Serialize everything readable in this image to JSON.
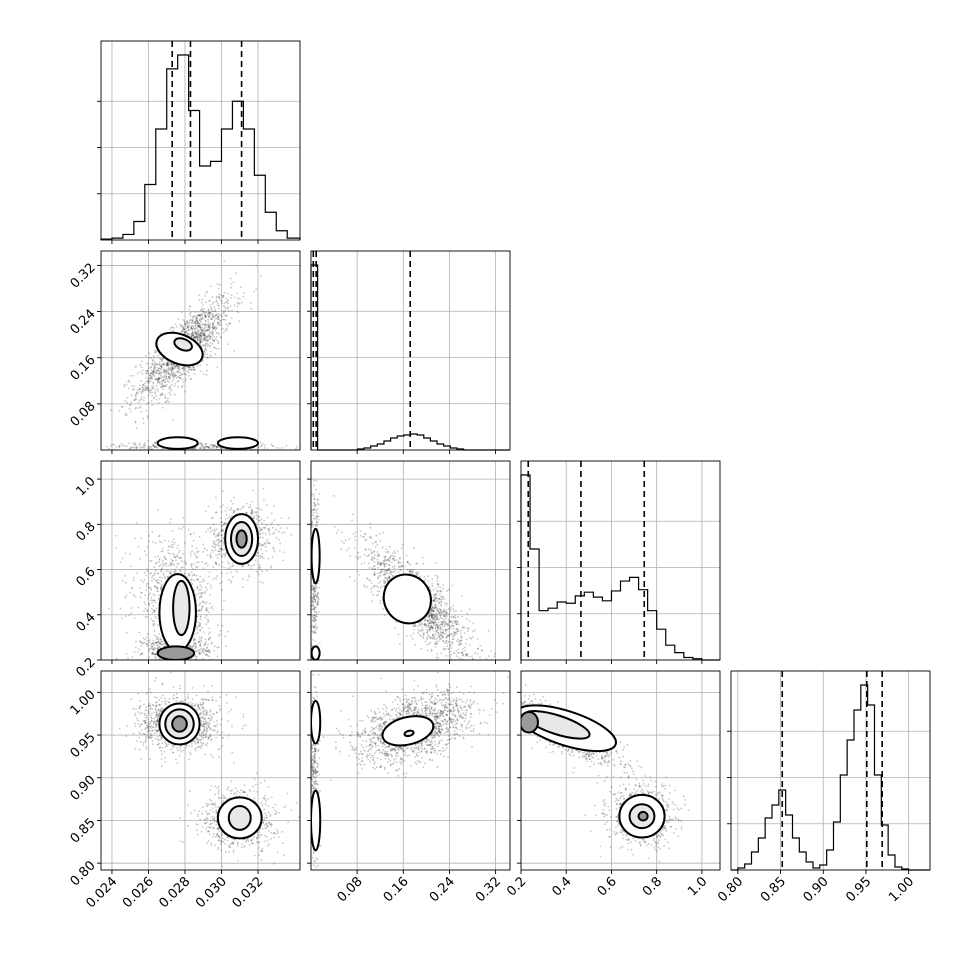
{
  "chart_data": {
    "type": "corner",
    "grid": true,
    "parameters": [
      {
        "range": [
          0.0234,
          0.0343
        ],
        "ticks": [
          0.024,
          0.026,
          0.028,
          0.03,
          0.032
        ],
        "tick_labels": [
          "0.024",
          "0.026",
          "0.028",
          "0.030",
          "0.032"
        ],
        "quantiles": [
          0.0273,
          0.0283,
          0.0311
        ],
        "histogram": {
          "bin_edges": [
            0.0234,
            0.024,
            0.0246,
            0.0252,
            0.0258,
            0.0264,
            0.027,
            0.0276,
            0.0282,
            0.0288,
            0.0294,
            0.03,
            0.0306,
            0.0312,
            0.0318,
            0.0324,
            0.033,
            0.0336,
            0.0343
          ],
          "counts": [
            1,
            2,
            6,
            20,
            60,
            120,
            185,
            200,
            140,
            80,
            85,
            120,
            150,
            120,
            70,
            30,
            10,
            2
          ]
        }
      },
      {
        "range": [
          0.0,
          0.345
        ],
        "ticks": [
          0.08,
          0.16,
          0.24,
          0.32
        ],
        "tick_labels": [
          "0.08",
          "0.16",
          "0.24",
          "0.32"
        ],
        "quantiles": [
          0.004,
          0.009,
          0.172
        ],
        "histogram": {
          "bin_edges": [
            0.0,
            0.0115,
            0.023,
            0.0345,
            0.046,
            0.0575,
            0.069,
            0.0805,
            0.092,
            0.1035,
            0.115,
            0.1265,
            0.138,
            0.1495,
            0.161,
            0.1725,
            0.184,
            0.1955,
            0.207,
            0.2185,
            0.23,
            0.2415,
            0.253,
            0.2645,
            0.276,
            0.2875,
            0.299,
            0.3105,
            0.322,
            0.3335,
            0.345
          ],
          "counts": [
            185,
            0,
            0,
            0,
            0,
            0,
            0,
            1,
            2,
            4,
            6,
            9,
            12,
            14,
            15,
            16,
            15,
            12,
            9,
            6,
            4,
            2,
            1,
            0,
            0,
            0,
            0,
            0,
            0,
            0
          ]
        }
      },
      {
        "range": [
          0.2,
          1.08
        ],
        "ticks": [
          0.2,
          0.4,
          0.6,
          0.8,
          1.0
        ],
        "tick_labels": [
          "0.2",
          "0.4",
          "0.6",
          "0.8",
          "1.0"
        ],
        "quantiles": [
          0.232,
          0.465,
          0.745
        ],
        "histogram": {
          "bin_edges": [
            0.2,
            0.24,
            0.28,
            0.32,
            0.36,
            0.4,
            0.44,
            0.48,
            0.52,
            0.56,
            0.6,
            0.64,
            0.68,
            0.72,
            0.76,
            0.8,
            0.84,
            0.88,
            0.92,
            0.96,
            1.0,
            1.04,
            1.08
          ],
          "counts": [
            150,
            90,
            40,
            42,
            47,
            46,
            52,
            55,
            51,
            48,
            56,
            64,
            67,
            57,
            40,
            25,
            12,
            6,
            2,
            1,
            0,
            0
          ]
        }
      },
      {
        "range": [
          0.792,
          1.025
        ],
        "ticks": [
          0.8,
          0.85,
          0.9,
          0.95,
          1.0
        ],
        "tick_labels": [
          "0.80",
          "0.85",
          "0.90",
          "0.95",
          "1.00"
        ],
        "quantiles": [
          0.852,
          0.951,
          0.969
        ],
        "histogram": {
          "bin_edges": [
            0.792,
            0.8,
            0.808,
            0.816,
            0.824,
            0.832,
            0.84,
            0.848,
            0.856,
            0.864,
            0.872,
            0.88,
            0.888,
            0.896,
            0.904,
            0.912,
            0.92,
            0.928,
            0.936,
            0.944,
            0.952,
            0.96,
            0.968,
            0.976,
            0.984,
            0.992,
            1.0,
            1.008,
            1.025
          ],
          "counts": [
            0,
            2,
            6,
            18,
            32,
            52,
            65,
            80,
            55,
            32,
            18,
            8,
            2,
            5,
            20,
            48,
            95,
            130,
            160,
            185,
            165,
            95,
            45,
            15,
            3,
            1,
            0,
            0
          ]
        }
      }
    ],
    "pairs": [
      {
        "row": 1,
        "col": 0,
        "clouds": [
          {
            "mean": [
              0.028,
              0.175
            ],
            "sd": [
              0.0013,
              0.045
            ],
            "rho": 0.8,
            "n": 1500
          },
          {
            "mean": [
              0.0285,
              0.006
            ],
            "sd": [
              0.0022,
              0.004
            ],
            "rho": 0.0,
            "n": 350
          }
        ],
        "contours": [
          {
            "center": [
              0.0277,
              0.175
            ],
            "rx": 0.0008,
            "ry": 0.042,
            "rot": -68,
            "level": 0
          },
          {
            "center": [
              0.0279,
              0.183
            ],
            "rx": 0.0003,
            "ry": 0.016,
            "rot": -68,
            "level": 1
          },
          {
            "center": [
              0.0276,
              0.012
            ],
            "rx": 0.0011,
            "ry": 0.01,
            "rot": 0,
            "level": 0
          },
          {
            "center": [
              0.0309,
              0.012
            ],
            "rx": 0.0011,
            "ry": 0.01,
            "rot": 0,
            "level": 0
          }
        ]
      },
      {
        "row": 2,
        "col": 0,
        "clouds": [
          {
            "mean": [
              0.0311,
              0.74
            ],
            "sd": [
              0.0009,
              0.075
            ],
            "rho": 0.0,
            "n": 700
          },
          {
            "mean": [
              0.0275,
              0.46
            ],
            "sd": [
              0.0011,
              0.13
            ],
            "rho": -0.2,
            "n": 900
          },
          {
            "mean": [
              0.0275,
              0.25
            ],
            "sd": [
              0.0009,
              0.03
            ],
            "rho": 0.0,
            "n": 450
          }
        ],
        "contours": [
          {
            "center": [
              0.0311,
              0.735
            ],
            "rx": 0.0009,
            "ry": 0.11,
            "rot": 0,
            "level": 0
          },
          {
            "center": [
              0.0311,
              0.735
            ],
            "rx": 0.00058,
            "ry": 0.075,
            "rot": 0,
            "level": 1
          },
          {
            "center": [
              0.0311,
              0.735
            ],
            "rx": 0.00028,
            "ry": 0.038,
            "rot": 0,
            "level": 2
          },
          {
            "center": [
              0.0276,
              0.41
            ],
            "rx": 0.001,
            "ry": 0.17,
            "rot": 0,
            "level": 0
          },
          {
            "center": [
              0.0278,
              0.43
            ],
            "rx": 0.00045,
            "ry": 0.12,
            "rot": 0,
            "level": 1
          },
          {
            "center": [
              0.0275,
              0.23
            ],
            "rx": 0.001,
            "ry": 0.03,
            "rot": 0,
            "level": 2
          }
        ]
      },
      {
        "row": 2,
        "col": 1,
        "clouds": [
          {
            "mean": [
              0.185,
              0.46
            ],
            "sd": [
              0.045,
              0.12
            ],
            "rho": -0.8,
            "n": 1500
          },
          {
            "mean": [
              0.006,
              0.55
            ],
            "sd": [
              0.004,
              0.22
            ],
            "rho": 0.0,
            "n": 350
          }
        ],
        "contours": [
          {
            "center": [
              0.167,
              0.47
            ],
            "rx": 0.04,
            "ry": 0.11,
            "rot": -32,
            "level": 0
          },
          {
            "center": [
              0.008,
              0.66
            ],
            "rx": 0.007,
            "ry": 0.12,
            "rot": 0,
            "level": 0
          },
          {
            "center": [
              0.008,
              0.23
            ],
            "rx": 0.007,
            "ry": 0.03,
            "rot": 0,
            "level": 0
          }
        ]
      },
      {
        "row": 3,
        "col": 0,
        "clouds": [
          {
            "mean": [
              0.0277,
              0.963
            ],
            "sd": [
              0.0011,
              0.016
            ],
            "rho": 0.0,
            "n": 1100
          },
          {
            "mean": [
              0.031,
              0.852
            ],
            "sd": [
              0.001,
              0.017
            ],
            "rho": 0.0,
            "n": 800
          }
        ],
        "contours": [
          {
            "center": [
              0.0277,
              0.963
            ],
            "rx": 0.0011,
            "ry": 0.024,
            "rot": 0,
            "level": 0
          },
          {
            "center": [
              0.0277,
              0.963
            ],
            "rx": 0.00078,
            "ry": 0.017,
            "rot": 0,
            "level": 1
          },
          {
            "center": [
              0.0277,
              0.963
            ],
            "rx": 0.0004,
            "ry": 0.009,
            "rot": 0,
            "level": 2
          },
          {
            "center": [
              0.031,
              0.853
            ],
            "rx": 0.0012,
            "ry": 0.024,
            "rot": 0,
            "level": 0
          },
          {
            "center": [
              0.031,
              0.853
            ],
            "rx": 0.0006,
            "ry": 0.014,
            "rot": 0,
            "level": 1
          }
        ]
      },
      {
        "row": 3,
        "col": 1,
        "clouds": [
          {
            "mean": [
              0.18,
              0.958
            ],
            "sd": [
              0.05,
              0.02
            ],
            "rho": 0.45,
            "n": 1500
          },
          {
            "mean": [
              0.006,
              0.9
            ],
            "sd": [
              0.004,
              0.055
            ],
            "rho": 0.0,
            "n": 350
          }
        ],
        "contours": [
          {
            "center": [
              0.168,
              0.955
            ],
            "rx": 0.045,
            "ry": 0.016,
            "rot": -14,
            "level": 0
          },
          {
            "center": [
              0.17,
              0.952
            ],
            "rx": 0.008,
            "ry": 0.003,
            "rot": -14,
            "level": 1
          },
          {
            "center": [
              0.008,
              0.965
            ],
            "rx": 0.008,
            "ry": 0.025,
            "rot": 0,
            "level": 0
          },
          {
            "center": [
              0.008,
              0.85
            ],
            "rx": 0.008,
            "ry": 0.035,
            "rot": 0,
            "level": 0
          }
        ]
      },
      {
        "row": 3,
        "col": 2,
        "clouds": [
          {
            "mean": [
              0.38,
              0.955
            ],
            "sd": [
              0.12,
              0.02
            ],
            "rho": -0.85,
            "n": 1100
          },
          {
            "mean": [
              0.73,
              0.855
            ],
            "sd": [
              0.07,
              0.017
            ],
            "rho": 0.0,
            "n": 800
          }
        ],
        "contours": [
          {
            "center": [
              0.4,
              0.958
            ],
            "rx": 0.23,
            "ry": 0.02,
            "rot": 18,
            "level": 0
          },
          {
            "center": [
              0.36,
              0.962
            ],
            "rx": 0.15,
            "ry": 0.011,
            "rot": 18,
            "level": 1
          },
          {
            "center": [
              0.235,
              0.965
            ],
            "rx": 0.04,
            "ry": 0.012,
            "rot": 0,
            "level": 2
          },
          {
            "center": [
              0.735,
              0.855
            ],
            "rx": 0.1,
            "ry": 0.025,
            "rot": 0,
            "level": 0
          },
          {
            "center": [
              0.735,
              0.855
            ],
            "rx": 0.055,
            "ry": 0.014,
            "rot": 0,
            "level": 1
          },
          {
            "center": [
              0.74,
              0.855
            ],
            "rx": 0.02,
            "ry": 0.005,
            "rot": 0,
            "level": 2
          }
        ]
      }
    ]
  }
}
